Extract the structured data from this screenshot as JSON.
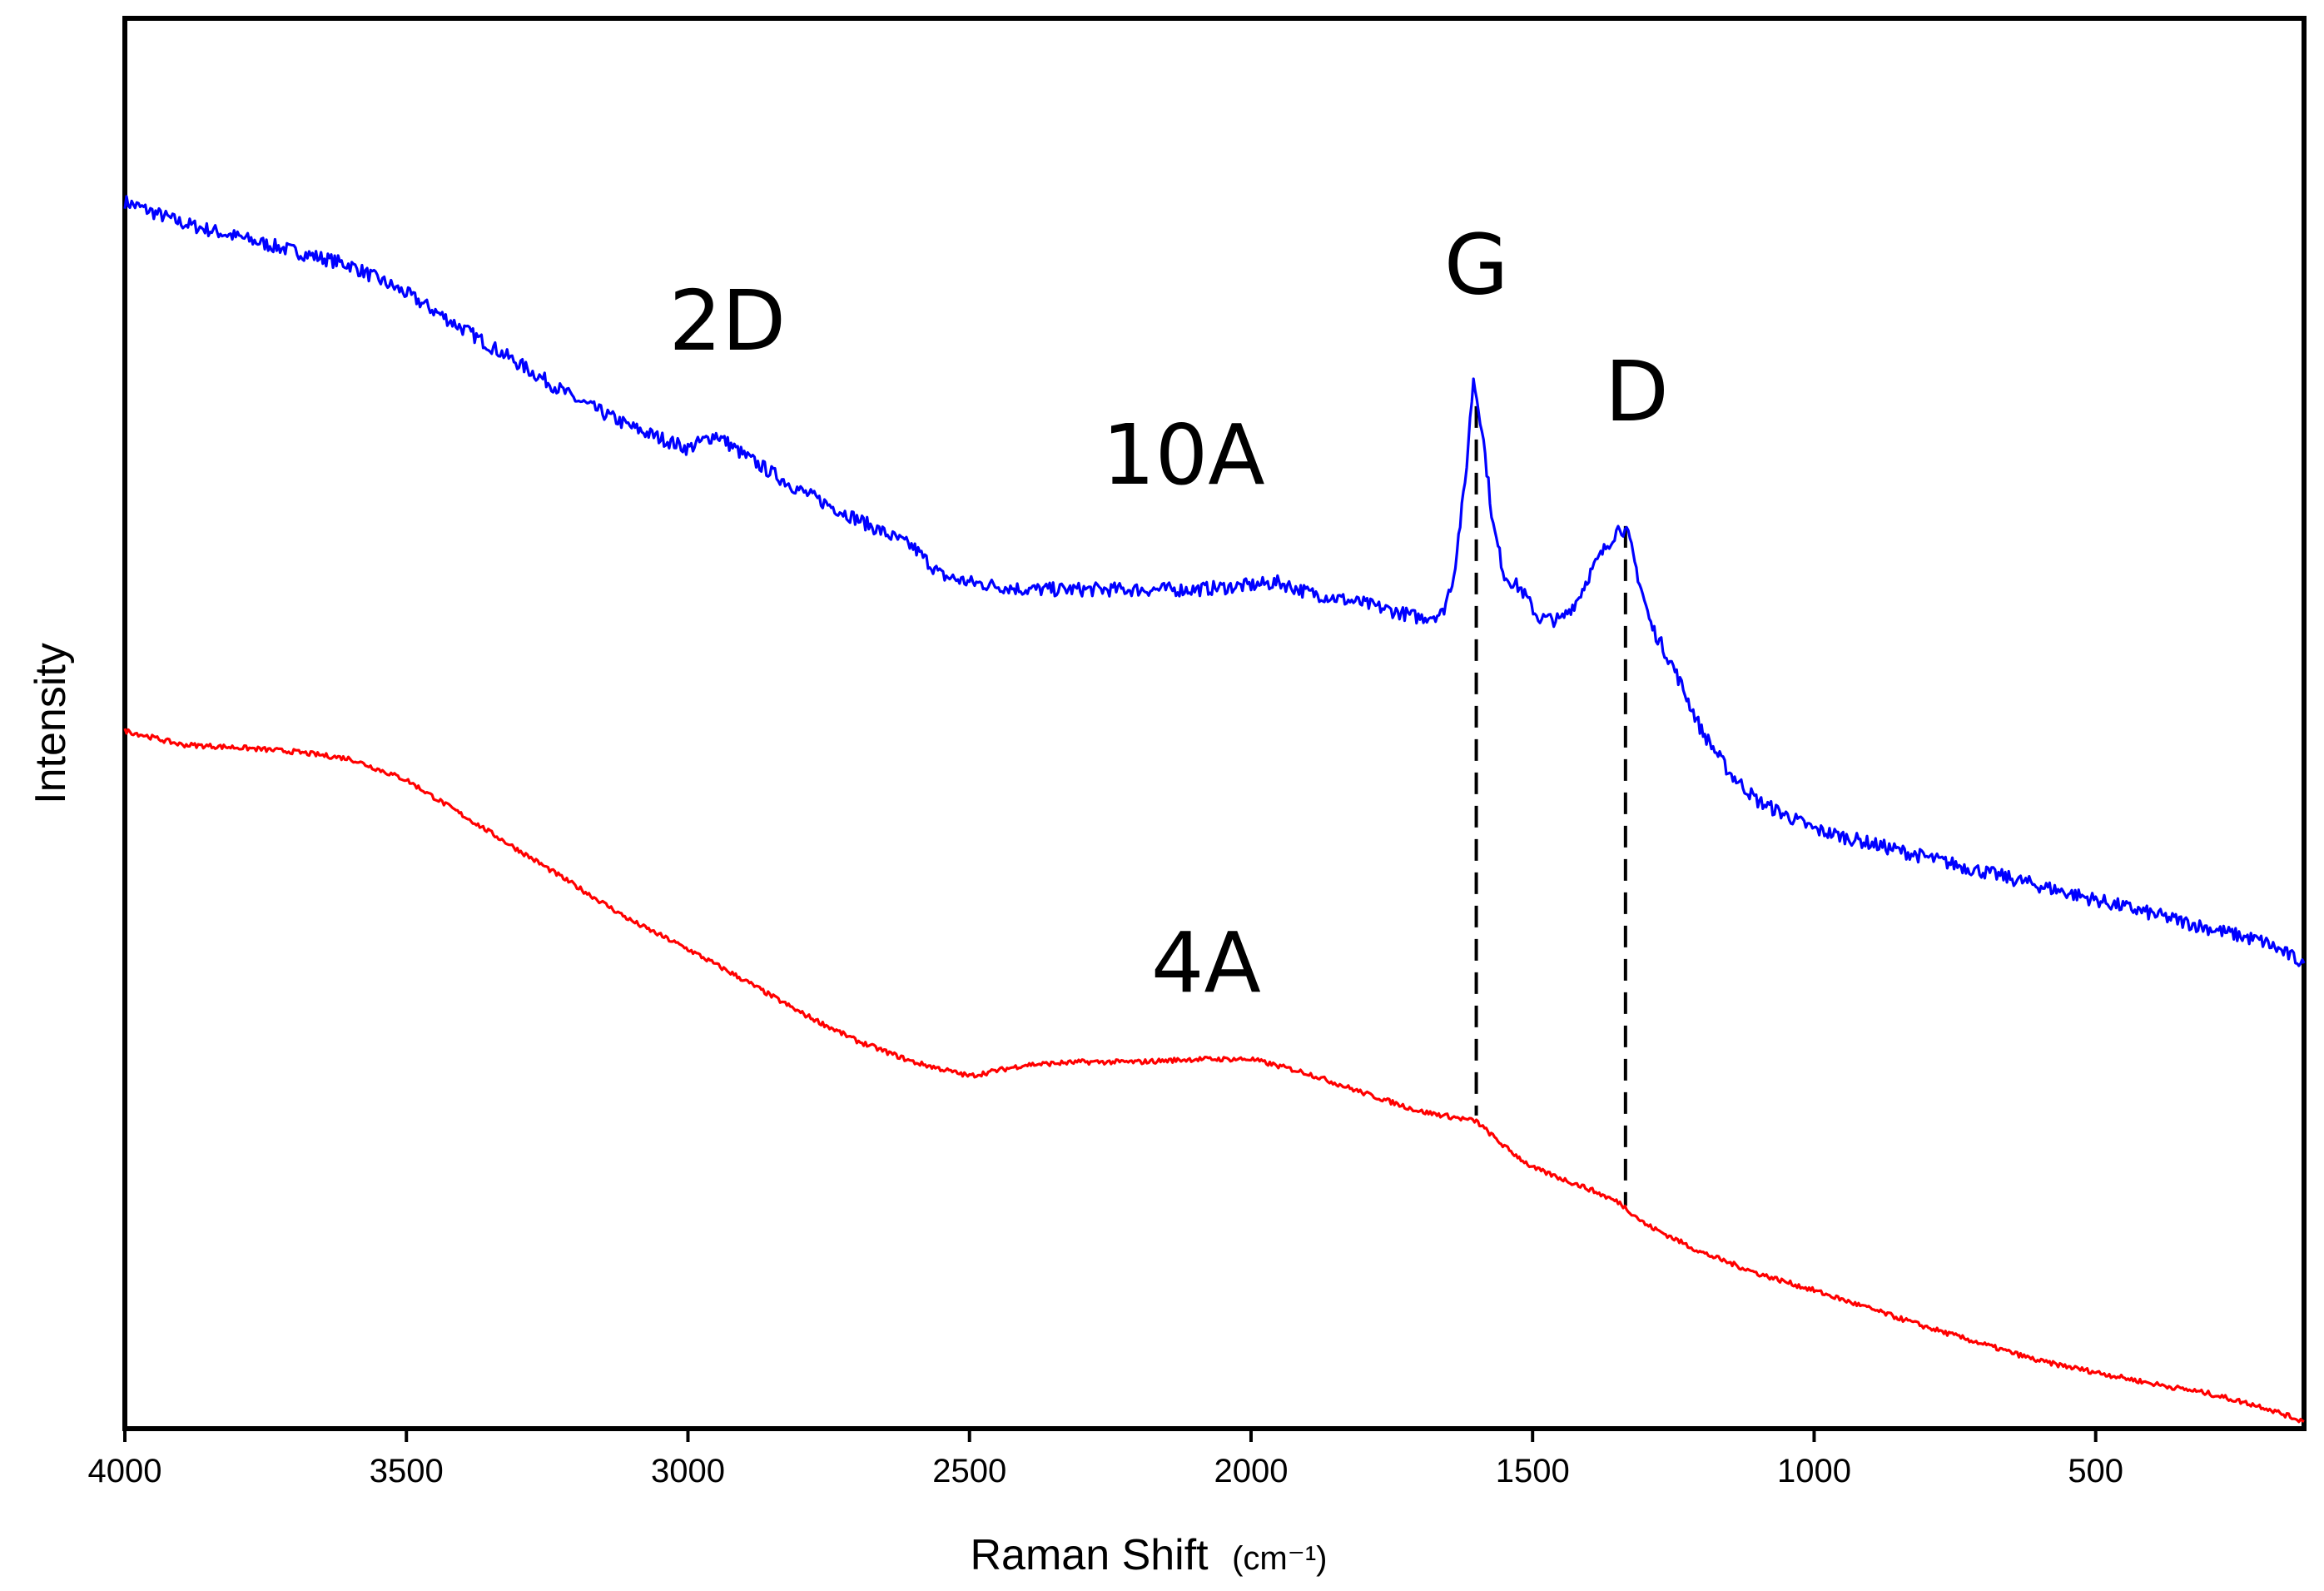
{
  "chart_data": {
    "type": "line",
    "title": "",
    "xlabel": "Raman Shift",
    "xlabel_unit": "(cm⁻¹)",
    "ylabel": "Intensity",
    "xlim": [
      4000,
      130
    ],
    "ylim": [
      0,
      100
    ],
    "x_reversed": true,
    "y_ticks_shown": false,
    "grid": false,
    "x_ticks": [
      {
        "value": 4000,
        "label": "4000"
      },
      {
        "value": 3500,
        "label": "3500"
      },
      {
        "value": 3000,
        "label": "3000"
      },
      {
        "value": 2500,
        "label": "2500"
      },
      {
        "value": 2000,
        "label": "2000"
      },
      {
        "value": 1500,
        "label": "1500"
      },
      {
        "value": 1000,
        "label": "1000"
      },
      {
        "value": 500,
        "label": "500"
      }
    ],
    "series": [
      {
        "name": "10A",
        "color": "#0000ff",
        "noise": 1.0,
        "x": [
          4000,
          3900,
          3800,
          3700,
          3600,
          3500,
          3400,
          3300,
          3200,
          3100,
          3000,
          2950,
          2900,
          2800,
          2700,
          2600,
          2550,
          2500,
          2400,
          2300,
          2200,
          2100,
          2000,
          1950,
          1900,
          1800,
          1700,
          1660,
          1640,
          1620,
          1605,
          1590,
          1570,
          1550,
          1520,
          1490,
          1450,
          1420,
          1400,
          1370,
          1345,
          1330,
          1310,
          1290,
          1250,
          1200,
          1150,
          1100,
          1050,
          1000,
          900,
          800,
          700,
          600,
          500,
          400,
          300,
          200,
          130
        ],
        "y": [
          87.0,
          85.5,
          84.5,
          83.5,
          82.5,
          80.5,
          78.0,
          75.5,
          73.0,
          71.0,
          69.5,
          70.5,
          69.0,
          66.5,
          64.5,
          62.5,
          60.5,
          60.0,
          59.5,
          59.5,
          59.5,
          59.5,
          59.8,
          60.0,
          59.3,
          58.5,
          57.5,
          57.8,
          60.5,
          67.0,
          74.5,
          71.0,
          64.0,
          60.5,
          59.5,
          57.5,
          57.3,
          58.8,
          60.5,
          62.5,
          64.0,
          63.3,
          60.0,
          57.0,
          54.0,
          49.5,
          46.5,
          44.5,
          43.5,
          42.5,
          41.5,
          40.5,
          39.5,
          38.5,
          37.5,
          36.5,
          35.5,
          34.5,
          33.0
        ]
      },
      {
        "name": "4A",
        "color": "#ff0000",
        "noise": 0.35,
        "x": [
          4000,
          3900,
          3800,
          3700,
          3600,
          3500,
          3400,
          3300,
          3200,
          3100,
          3000,
          2900,
          2800,
          2700,
          2600,
          2500,
          2400,
          2300,
          2200,
          2100,
          2000,
          1900,
          1800,
          1700,
          1600,
          1550,
          1500,
          1400,
          1345,
          1300,
          1200,
          1100,
          1000,
          900,
          800,
          700,
          600,
          500,
          400,
          300,
          200,
          130
        ],
        "y": [
          49.5,
          48.5,
          48.3,
          48.0,
          47.5,
          46.0,
          43.5,
          41.0,
          38.5,
          36.0,
          34.0,
          31.8,
          29.5,
          27.5,
          26.0,
          25.0,
          25.8,
          26.0,
          26.0,
          26.2,
          26.2,
          25.2,
          23.8,
          22.5,
          21.8,
          20.0,
          18.5,
          17.0,
          16.0,
          14.5,
          12.5,
          11.0,
          9.8,
          8.5,
          7.2,
          6.0,
          4.8,
          4.0,
          3.2,
          2.5,
          1.5,
          0.5
        ]
      }
    ],
    "annotations": [
      {
        "text": "2D",
        "x": 2930,
        "y": 76.5
      },
      {
        "text": "10A",
        "x": 2120,
        "y": 67
      },
      {
        "text": "G",
        "x": 1600,
        "y": 80.5
      },
      {
        "text": "D",
        "x": 1315,
        "y": 71.5
      },
      {
        "text": "4A",
        "x": 2080,
        "y": 31
      }
    ],
    "reference_lines": [
      {
        "name": "G",
        "x": 1600,
        "y_from": 22.2,
        "y_to": 72.5,
        "style": "dashed"
      },
      {
        "name": "D",
        "x": 1335,
        "y_from": 15.8,
        "y_to": 64.0,
        "style": "dashed"
      }
    ]
  }
}
